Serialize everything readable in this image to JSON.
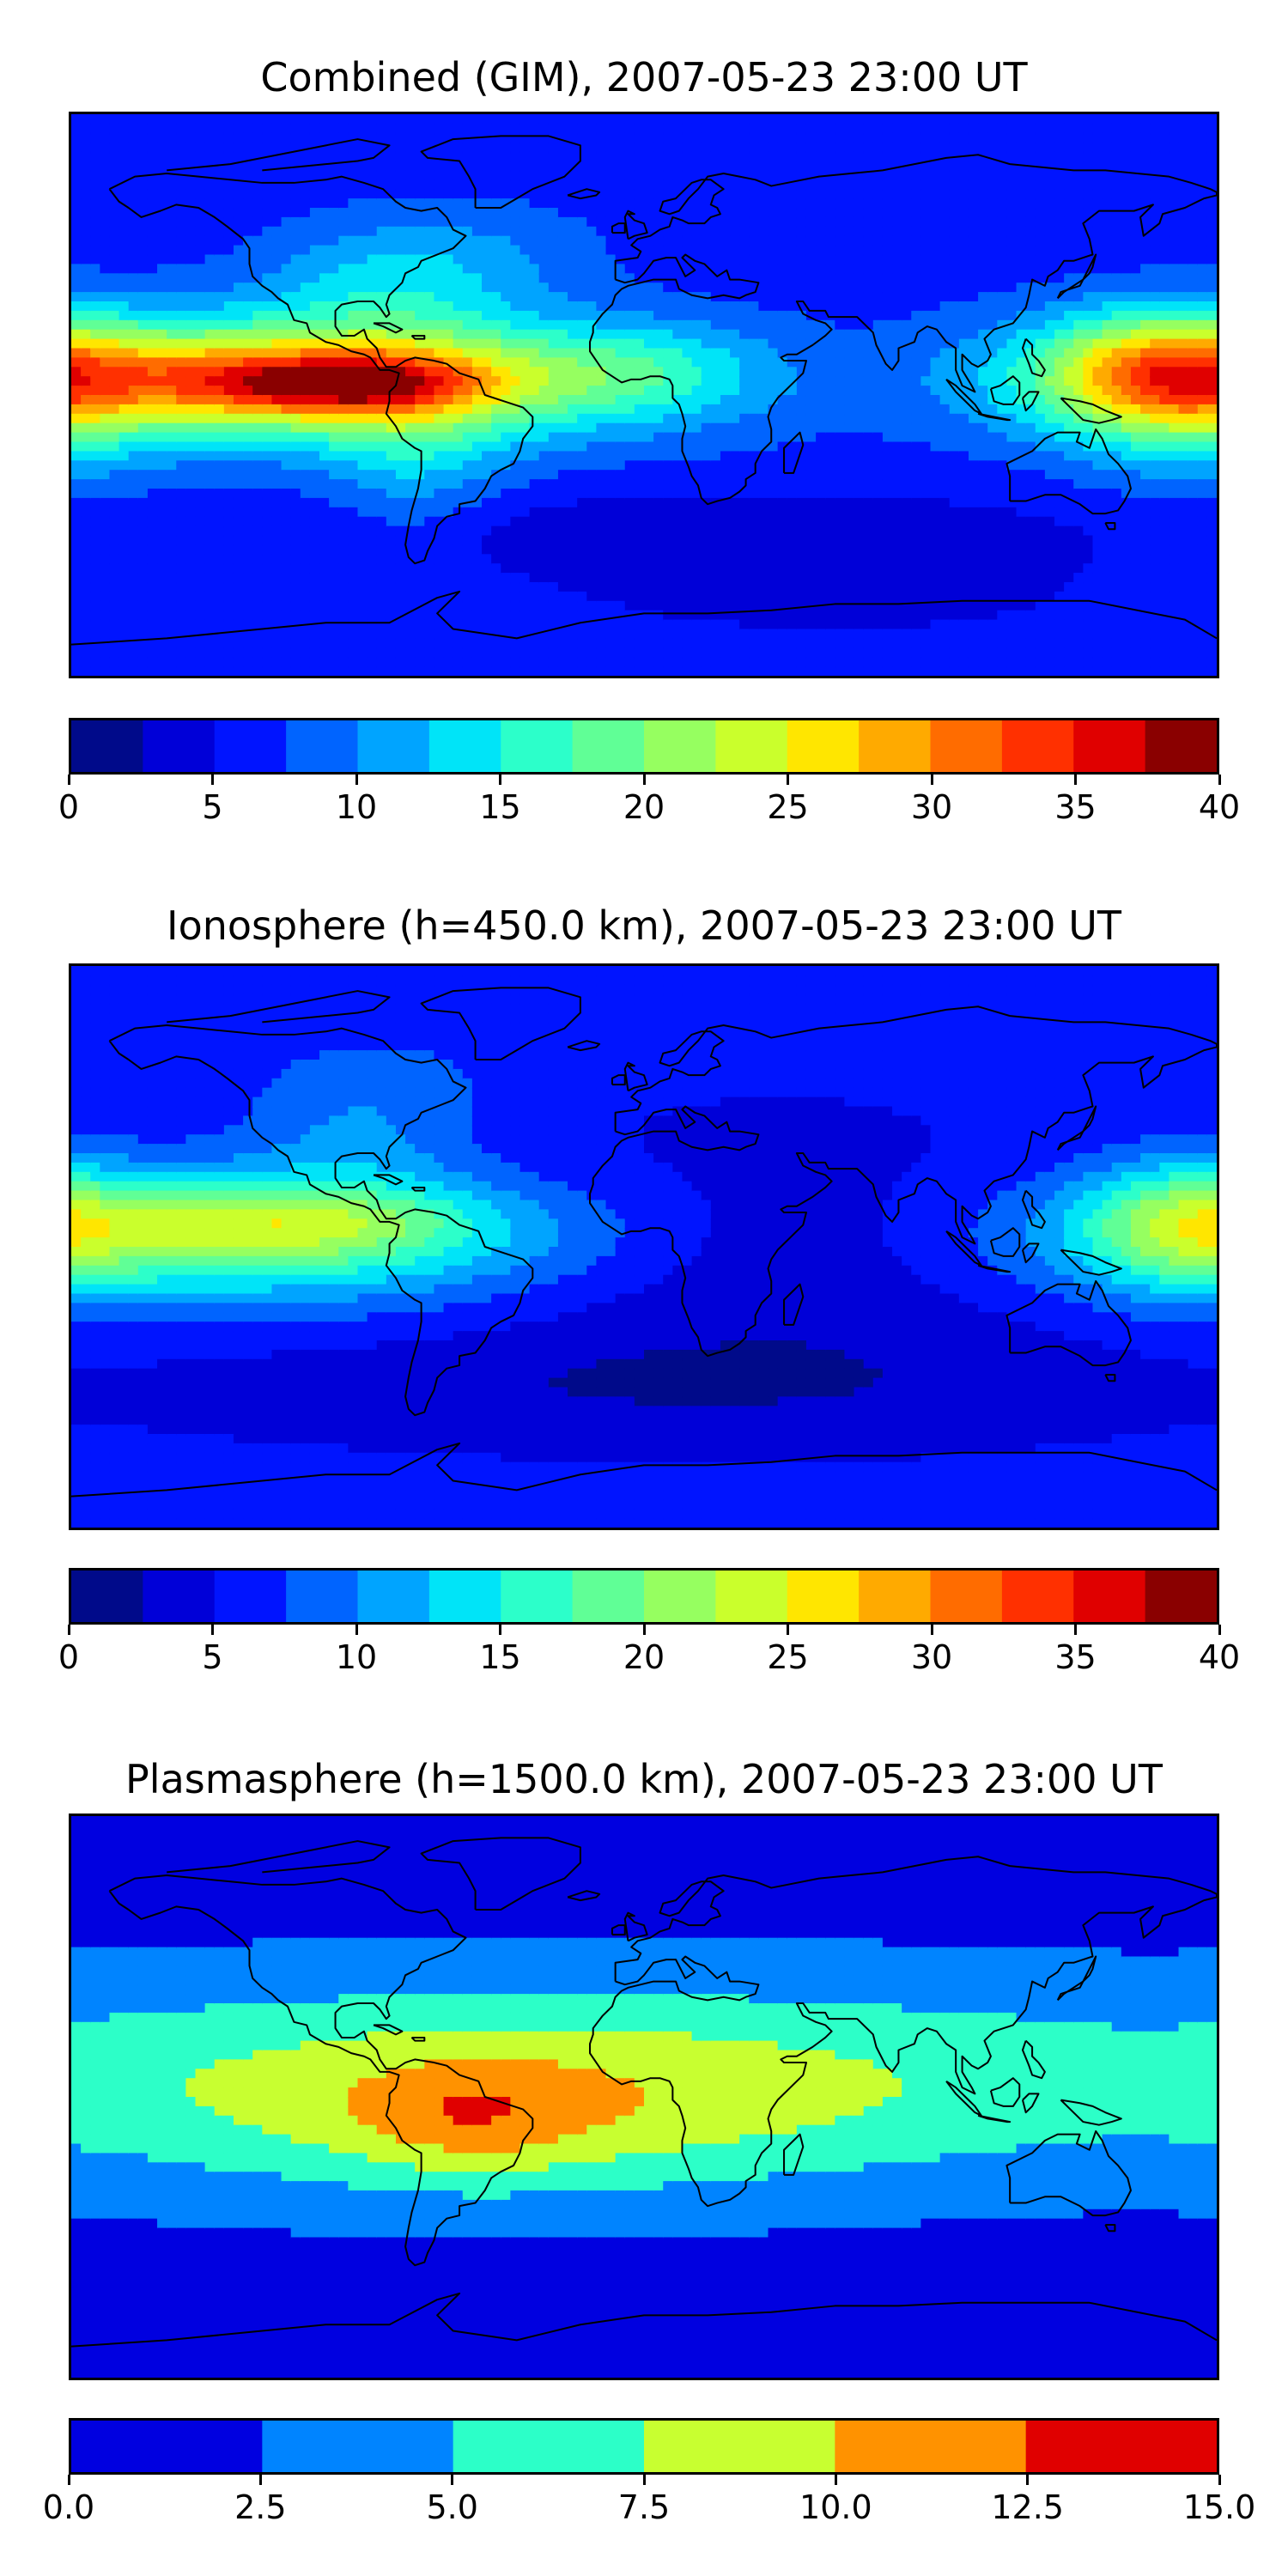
{
  "colors": {
    "jet16": [
      "#000a8a",
      "#0000d8",
      "#0014ff",
      "#0064ff",
      "#00a4ff",
      "#00e4f8",
      "#2cffca",
      "#60ff96",
      "#96ff60",
      "#caff2c",
      "#ffe600",
      "#ffaa00",
      "#ff6c00",
      "#ff3000",
      "#e00000",
      "#8a0000"
    ],
    "jet6": [
      "#0000e0",
      "#0084ff",
      "#2cffc8",
      "#c8ff30",
      "#ff9200",
      "#e00000"
    ],
    "coast": "#000000"
  },
  "chart_data": [
    {
      "type": "heatmap",
      "title": "Combined (GIM), 2007-05-23 23:00 UT",
      "projection": "plate-carree world map with coastlines",
      "xlim": [
        -180,
        180
      ],
      "ylim": [
        -90,
        90
      ],
      "colorbar": {
        "levels": [
          0,
          2.5,
          5,
          7.5,
          10,
          12.5,
          15,
          17.5,
          20,
          22.5,
          25,
          27.5,
          30,
          32.5,
          35,
          37.5,
          40
        ],
        "ticks": [
          "0",
          "5",
          "10",
          "15",
          "20",
          "25",
          "30",
          "35",
          "40"
        ],
        "tick_values": [
          0,
          5,
          10,
          15,
          20,
          25,
          30,
          35,
          40
        ],
        "vmin": 0,
        "vmax": 40
      },
      "background_value": 6,
      "features": [
        {
          "lon": -115,
          "lat": 5,
          "sx": 95,
          "sy": 16,
          "value": 14
        },
        {
          "lon": -110,
          "lat": 5,
          "sx": 55,
          "sy": 10,
          "value": 13
        },
        {
          "lon": -95,
          "lat": 3,
          "sx": 28,
          "sy": 6,
          "value": 9
        },
        {
          "lon": -80,
          "lat": 38,
          "sx": 28,
          "sy": 14,
          "value": 6
        },
        {
          "lon": -72,
          "lat": -18,
          "sx": 20,
          "sy": 22,
          "value": 5
        },
        {
          "lon": 0,
          "lat": 8,
          "sx": 25,
          "sy": 10,
          "value": 4
        },
        {
          "lon": -40,
          "lat": 48,
          "sx": 25,
          "sy": 12,
          "value": 2
        },
        {
          "lon": 160,
          "lat": 8,
          "sx": 25,
          "sy": 13,
          "value": 13
        },
        {
          "lon": 170,
          "lat": -5,
          "sx": 25,
          "sy": 18,
          "value": 5
        },
        {
          "lon": 20,
          "lat": -45,
          "sx": 90,
          "sy": 10,
          "value": -3
        },
        {
          "lon": 60,
          "lat": -65,
          "sx": 50,
          "sy": 8,
          "value": -2
        }
      ]
    },
    {
      "type": "heatmap",
      "title": "Ionosphere  (h=450.0 km), 2007-05-23 23:00 UT",
      "projection": "plate-carree world map with coastlines",
      "xlim": [
        -180,
        180
      ],
      "ylim": [
        -90,
        90
      ],
      "colorbar": {
        "levels": [
          0,
          2.5,
          5,
          7.5,
          10,
          12.5,
          15,
          17.5,
          20,
          22.5,
          25,
          27.5,
          30,
          32.5,
          35,
          37.5,
          40
        ],
        "ticks": [
          "0",
          "5",
          "10",
          "15",
          "20",
          "25",
          "30",
          "35",
          "40"
        ],
        "tick_values": [
          0,
          5,
          10,
          15,
          20,
          25,
          30,
          35,
          40
        ],
        "vmin": 0,
        "vmax": 40
      },
      "background_value": 5.5,
      "features": [
        {
          "lon": -130,
          "lat": 3,
          "sx": 80,
          "sy": 15,
          "value": 13
        },
        {
          "lon": -112,
          "lat": 8,
          "sx": 40,
          "sy": 8,
          "value": 7
        },
        {
          "lon": -90,
          "lat": 35,
          "sx": 25,
          "sy": 15,
          "value": 4
        },
        {
          "lon": 40,
          "lat": -5,
          "sx": 65,
          "sy": 28,
          "value": -3
        },
        {
          "lon": 0,
          "lat": -45,
          "sx": 110,
          "sy": 12,
          "value": -2.5
        },
        {
          "lon": 170,
          "lat": 8,
          "sx": 22,
          "sy": 14,
          "value": 10
        },
        {
          "lon": -80,
          "lat": 55,
          "sx": 30,
          "sy": 10,
          "value": 2
        }
      ]
    },
    {
      "type": "heatmap",
      "title": "Plasmasphere (h=1500.0 km), 2007-05-23 23:00 UT",
      "projection": "plate-carree world map with coastlines",
      "xlim": [
        -180,
        180
      ],
      "ylim": [
        -90,
        90
      ],
      "colorbar": {
        "levels": [
          0,
          2.5,
          5,
          7.5,
          10,
          12.5,
          15
        ],
        "ticks": [
          "0.0",
          "2.5",
          "5.0",
          "7.5",
          "10.0",
          "12.5",
          "15.0"
        ],
        "tick_values": [
          0,
          2.5,
          5,
          7.5,
          10,
          12.5,
          15
        ],
        "vmin": 0,
        "vmax": 15
      },
      "background_value": 1.5,
      "features": [
        {
          "lon": -20,
          "lat": 5,
          "sx": 220,
          "sy": 24,
          "value": 6
        },
        {
          "lon": -40,
          "lat": -5,
          "sx": 70,
          "sy": 20,
          "value": 3
        },
        {
          "lon": -55,
          "lat": -8,
          "sx": 25,
          "sy": 12,
          "value": 3
        }
      ]
    }
  ]
}
